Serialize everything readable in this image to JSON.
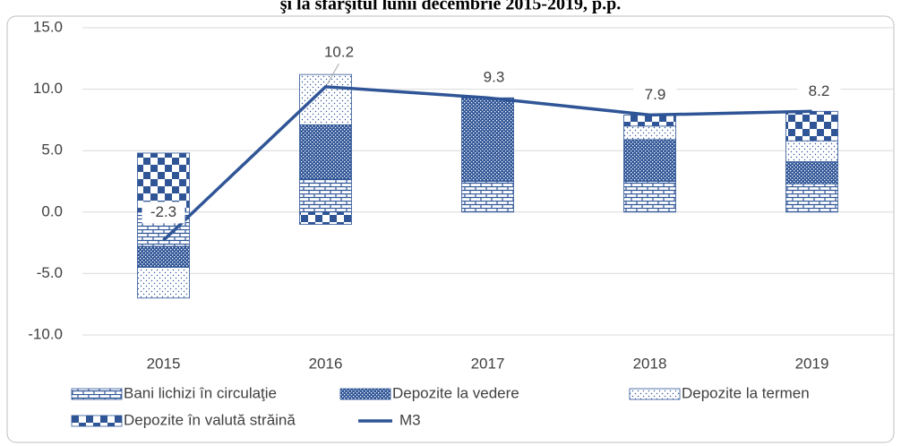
{
  "chart_data": {
    "type": "bar",
    "title": "şi la sfârşitul lunii decembrie 2015-2019, p.p.",
    "categories": [
      "2015",
      "2016",
      "2017",
      "2018",
      "2019"
    ],
    "series": [
      {
        "name": "Bani lichizi în circulaţie",
        "color": "#2f5597",
        "values": [
          -2.8,
          2.7,
          2.5,
          2.5,
          2.3
        ]
      },
      {
        "name": "Depozite la vedere",
        "color": "#2f5597",
        "values": [
          -1.7,
          4.4,
          6.8,
          3.4,
          1.8
        ]
      },
      {
        "name": "Depozite la termen",
        "color": "#2f5597",
        "values": [
          -2.5,
          4.1,
          0,
          1.1,
          1.7
        ]
      },
      {
        "name": "Depozite în valută străină",
        "color": "#2f5597",
        "values": [
          4.8,
          -1.0,
          0,
          0.9,
          2.4
        ]
      },
      {
        "name": "M3",
        "type": "line",
        "color": "#2f5597",
        "values": [
          -2.3,
          10.2,
          9.3,
          7.9,
          8.2
        ]
      }
    ],
    "ylim": [
      -12.5,
      16
    ],
    "yticks": [
      {
        "value": -10,
        "label": "-10.0"
      },
      {
        "value": -5,
        "label": "-5.0"
      },
      {
        "value": 0,
        "label": "0.0"
      },
      {
        "value": 5,
        "label": "5.0"
      },
      {
        "value": 10,
        "label": "10.0"
      },
      {
        "value": 15,
        "label": "15.0"
      }
    ],
    "grid": true
  }
}
